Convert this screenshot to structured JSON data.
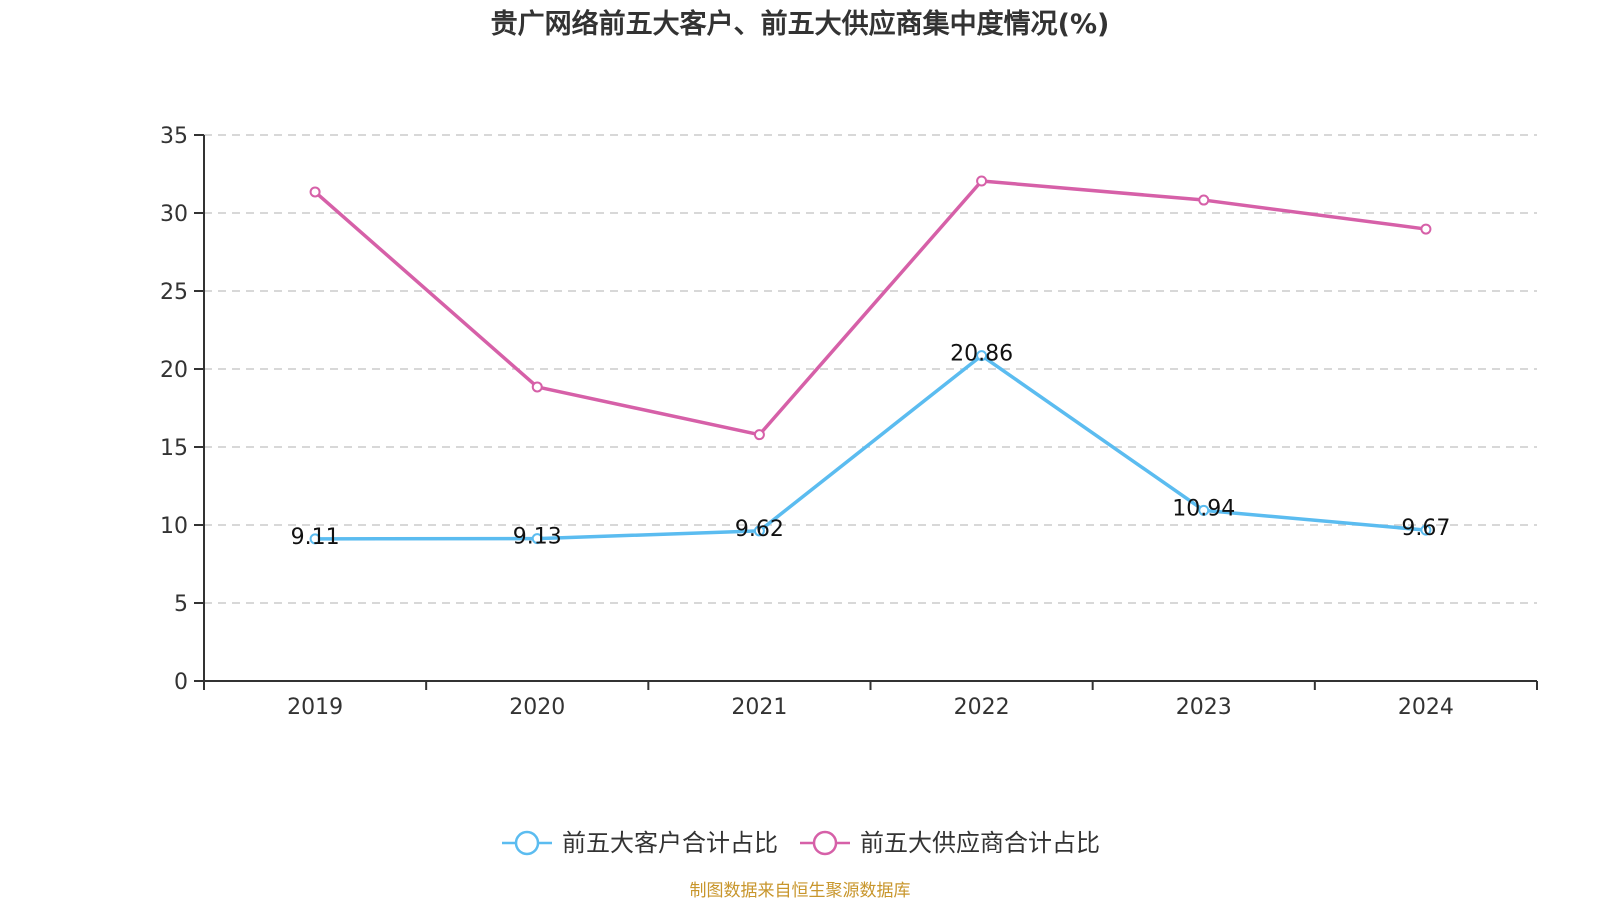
{
  "chart_data": {
    "type": "line",
    "title": "贵广网络前五大客户、前五大供应商集中度情况(%)",
    "xlabel": "",
    "ylabel": "",
    "categories": [
      "2019",
      "2020",
      "2021",
      "2022",
      "2023",
      "2024"
    ],
    "ylim": [
      0,
      35
    ],
    "yticks": [
      0,
      5,
      10,
      15,
      20,
      25,
      30,
      35
    ],
    "grid": true,
    "legend_position": "bottom",
    "series": [
      {
        "name": "前五大客户合计占比",
        "color": "#5bbcf0",
        "values": [
          9.11,
          9.13,
          9.62,
          20.86,
          10.94,
          9.67
        ],
        "labels": [
          "9.11",
          "9.13",
          "9.62",
          "20.86",
          "10.94",
          "9.67"
        ],
        "show_labels": true
      },
      {
        "name": "前五大供应商合计占比",
        "color": "#d660a8",
        "values": [
          31.35,
          18.85,
          15.79,
          32.05,
          30.83,
          28.97
        ],
        "show_labels": false
      }
    ],
    "source": "制图数据来自恒生聚源数据库",
    "source_color": "#c8962c"
  }
}
